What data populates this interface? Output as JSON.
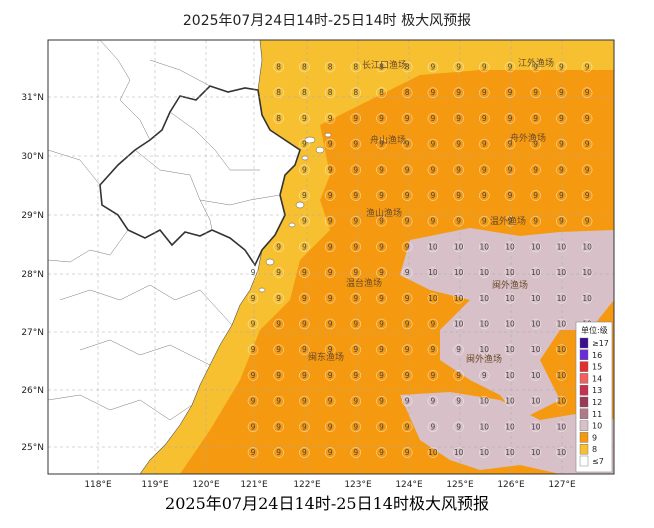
{
  "title": "2025年07月24日14时-25日14时 极大风预报",
  "caption": "2025年07月24日14时-25日14时极大风预报",
  "axes": {
    "lon_labels": [
      "118°E",
      "119°E",
      "120°E",
      "121°E",
      "122°E",
      "123°E",
      "124°E",
      "125°E",
      "126°E",
      "127°E"
    ],
    "lat_labels": [
      "31°N",
      "30°N",
      "29°N",
      "28°N",
      "27°N",
      "26°N",
      "25°N"
    ]
  },
  "fishing_zones": [
    "长江口渔场",
    "江外渔场",
    "舟山渔场",
    "舟外渔场",
    "渔山渔场",
    "温外渔场",
    "温台渔场",
    "闽外渔场",
    "闽东渔场",
    "闽外渔场"
  ],
  "legend": {
    "title": "单位:级",
    "items": [
      {
        "label": "≥17",
        "color": "#3b0f8f"
      },
      {
        "label": "16",
        "color": "#6a2bd8"
      },
      {
        "label": "15",
        "color": "#e03030"
      },
      {
        "label": "14",
        "color": "#f06060"
      },
      {
        "label": "13",
        "color": "#c83050"
      },
      {
        "label": "12",
        "color": "#9a3a55"
      },
      {
        "label": "11",
        "color": "#b07a8a"
      },
      {
        "label": "10",
        "color": "#d8c0c8"
      },
      {
        "label": "9",
        "color": "#f59a10"
      },
      {
        "label": "8",
        "color": "#f7c030"
      },
      {
        "label": "≤7",
        "color": "#ffffff"
      }
    ]
  },
  "colors": {
    "level8": "#f7c030",
    "level9": "#f59a10",
    "level10": "#d8c0c8",
    "land": "#ffffff",
    "grid": "#aaaaaa"
  },
  "grid_values": {
    "dominant": 9,
    "shore": 8,
    "patches": 10
  }
}
